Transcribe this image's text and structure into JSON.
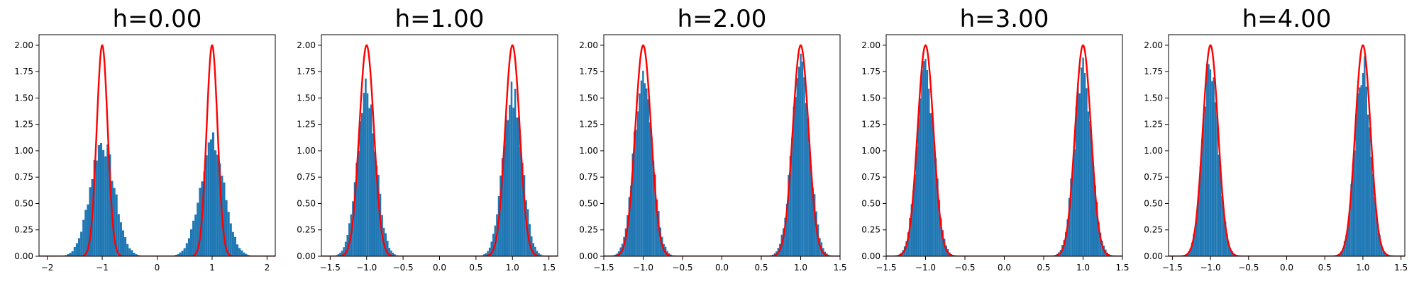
{
  "colors": {
    "hist": "#1f77b4",
    "curve": "#ff0000",
    "axis": "#000000"
  },
  "chart_data": [
    {
      "type": "bar",
      "title": "h=0.00",
      "xlim": [
        -2.15,
        2.15
      ],
      "ylim": [
        0,
        2.1
      ],
      "xticks": [
        -2,
        -1,
        0,
        1,
        2
      ],
      "xtick_labels": [
        "−2",
        "−1",
        "0",
        "1",
        "2"
      ],
      "yticks": [
        0,
        0.25,
        0.5,
        0.75,
        1.0,
        1.25,
        1.5,
        1.75,
        2.0
      ],
      "ytick_labels": [
        "0.00",
        "0.25",
        "0.50",
        "0.75",
        "1.00",
        "1.25",
        "1.50",
        "1.75",
        "2.00"
      ],
      "hist_sigma": 0.22,
      "hist_peak": 1.08,
      "bin_width": 0.04,
      "curve_sigma": 0.1,
      "curve_peak": 2.0,
      "modes": [
        -1,
        1
      ]
    },
    {
      "type": "bar",
      "title": "h=1.00",
      "xlim": [
        -1.62,
        1.62
      ],
      "ylim": [
        0,
        2.1
      ],
      "xticks": [
        -1.5,
        -1.0,
        -0.5,
        0.0,
        0.5,
        1.0,
        1.5
      ],
      "xtick_labels": [
        "−1.5",
        "−1.0",
        "−0.5",
        "0.0",
        "0.5",
        "1.0",
        "1.5"
      ],
      "yticks": [
        0,
        0.25,
        0.5,
        0.75,
        1.0,
        1.25,
        1.5,
        1.75,
        2.0
      ],
      "ytick_labels": [
        "0.00",
        "0.25",
        "0.50",
        "0.75",
        "1.00",
        "1.25",
        "1.50",
        "1.75",
        "2.00"
      ],
      "hist_sigma": 0.13,
      "hist_peak": 1.55,
      "bin_width": 0.025,
      "curve_sigma": 0.1,
      "curve_peak": 2.0,
      "modes": [
        -1,
        1
      ]
    },
    {
      "type": "bar",
      "title": "h=2.00",
      "xlim": [
        -1.5,
        1.5
      ],
      "ylim": [
        0,
        2.1
      ],
      "xticks": [
        -1.5,
        -1.0,
        -0.5,
        0.0,
        0.5,
        1.0,
        1.5
      ],
      "xtick_labels": [
        "−1.5",
        "−1.0",
        "−0.5",
        "0.0",
        "0.5",
        "1.0",
        "1.5"
      ],
      "yticks": [
        0,
        0.25,
        0.5,
        0.75,
        1.0,
        1.25,
        1.5,
        1.75,
        2.0
      ],
      "ytick_labels": [
        "0.00",
        "0.25",
        "0.50",
        "0.75",
        "1.00",
        "1.25",
        "1.50",
        "1.75",
        "2.00"
      ],
      "hist_sigma": 0.115,
      "hist_peak": 1.75,
      "bin_width": 0.022,
      "curve_sigma": 0.1,
      "curve_peak": 2.0,
      "modes": [
        -1,
        1
      ]
    },
    {
      "type": "bar",
      "title": "h=3.00",
      "xlim": [
        -1.5,
        1.5
      ],
      "ylim": [
        0,
        2.1
      ],
      "xticks": [
        -1.5,
        -1.0,
        -0.5,
        0.0,
        0.5,
        1.0,
        1.5
      ],
      "xtick_labels": [
        "−1.5",
        "−1.0",
        "−0.5",
        "0.0",
        "0.5",
        "1.0",
        "1.5"
      ],
      "yticks": [
        0,
        0.25,
        0.5,
        0.75,
        1.0,
        1.25,
        1.5,
        1.75,
        2.0
      ],
      "ytick_labels": [
        "0.00",
        "0.25",
        "0.50",
        "0.75",
        "1.00",
        "1.25",
        "1.50",
        "1.75",
        "2.00"
      ],
      "hist_sigma": 0.11,
      "hist_peak": 1.78,
      "bin_width": 0.022,
      "curve_sigma": 0.1,
      "curve_peak": 2.0,
      "modes": [
        -1,
        1
      ]
    },
    {
      "type": "bar",
      "title": "h=4.00",
      "xlim": [
        -1.55,
        1.55
      ],
      "ylim": [
        0,
        2.1
      ],
      "xticks": [
        -1.5,
        -1.0,
        -0.5,
        0.0,
        0.5,
        1.0,
        1.5
      ],
      "xtick_labels": [
        "−1.5",
        "−1.0",
        "−0.5",
        "0.0",
        "0.5",
        "1.0",
        "1.5"
      ],
      "yticks": [
        0,
        0.25,
        0.5,
        0.75,
        1.0,
        1.25,
        1.5,
        1.75,
        2.0
      ],
      "ytick_labels": [
        "0.00",
        "0.25",
        "0.50",
        "0.75",
        "1.00",
        "1.25",
        "1.50",
        "1.75",
        "2.00"
      ],
      "hist_sigma": 0.105,
      "hist_peak": 1.82,
      "bin_width": 0.022,
      "curve_sigma": 0.1,
      "curve_peak": 2.0,
      "modes": [
        -1,
        1
      ]
    }
  ]
}
